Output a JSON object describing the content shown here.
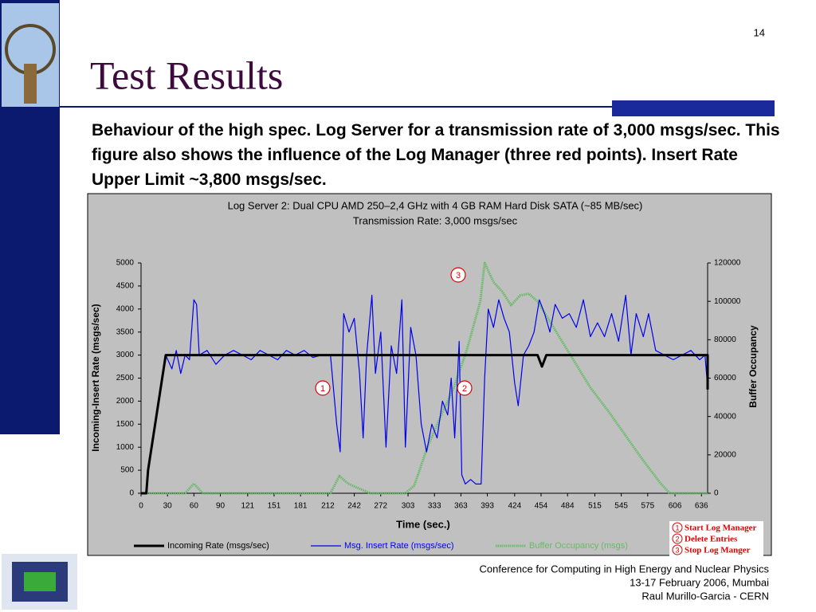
{
  "slide": {
    "page_number": "14",
    "title": "Test Results",
    "body": "Behaviour of the high spec. Log Server for a transmission rate of 3,000 msgs/sec. This figure also shows the influence of the Log Manager (three red points). Insert Rate Upper Limit ~3,800 msgs/sec.",
    "footer": [
      "Conference for Computing in High Energy and Nuclear Physics",
      "13-17 February 2006, Mumbai",
      "Raul Murillo-Garcia - CERN"
    ]
  },
  "chart_data": {
    "type": "line",
    "title": "Log Server 2: Dual CPU AMD 250–2,4 GHz with 4 GB RAM Hard Disk SATA (~85 MB/sec)",
    "subtitle": "Transmission Rate: 3,000 msgs/sec",
    "x_label": "Time (sec.)",
    "y_label": "Incoming-Insert Rate (msgs/sec)",
    "y2_label": "Buffer Occupancy",
    "xlim": [
      0,
      643
    ],
    "xticks": [
      0,
      30,
      60,
      90,
      121,
      151,
      181,
      212,
      242,
      272,
      303,
      333,
      363,
      393,
      424,
      454,
      484,
      515,
      545,
      575,
      606,
      636
    ],
    "ylim": [
      0,
      5000
    ],
    "yticks": [
      0,
      500,
      1000,
      1500,
      2000,
      2500,
      3000,
      3500,
      4000,
      4500,
      5000
    ],
    "y2lim": [
      0,
      120000
    ],
    "y2ticks": [
      0,
      20000,
      40000,
      60000,
      80000,
      100000,
      120000
    ],
    "series": [
      {
        "name": "Incoming Rate (msgs/sec)",
        "color": "#000000",
        "x": [
          0,
          6,
          8,
          28,
          450,
          455,
          460,
          643,
          643
        ],
        "values": [
          0,
          0,
          500,
          3000,
          3000,
          2750,
          3000,
          3000,
          2250
        ]
      },
      {
        "name": "Msg. Insert Rate (msgs/sec)",
        "color": "#0000ee",
        "x": [
          28,
          35,
          40,
          45,
          50,
          55,
          60,
          63,
          66,
          75,
          85,
          95,
          105,
          115,
          125,
          135,
          145,
          155,
          165,
          175,
          185,
          195,
          205,
          215,
          222,
          226,
          230,
          236,
          242,
          248,
          252,
          256,
          262,
          266,
          272,
          278,
          284,
          290,
          296,
          300,
          306,
          312,
          318,
          324,
          330,
          336,
          342,
          348,
          352,
          356,
          361,
          364,
          368,
          374,
          380,
          386,
          390,
          394,
          400,
          406,
          412,
          418,
          424,
          428,
          434,
          440,
          446,
          452,
          458,
          464,
          470,
          478,
          486,
          494,
          502,
          510,
          518,
          526,
          534,
          542,
          550,
          556,
          562,
          570,
          576,
          584,
          594,
          604,
          614,
          624,
          634,
          640,
          643
        ],
        "values": [
          3000,
          2700,
          3100,
          2600,
          3000,
          2900,
          4200,
          4100,
          3000,
          3100,
          2800,
          3000,
          3100,
          3000,
          2900,
          3100,
          3000,
          2900,
          3100,
          3000,
          3100,
          2950,
          3000,
          3000,
          1500,
          900,
          3900,
          3500,
          3800,
          2600,
          1200,
          3000,
          4300,
          2600,
          3500,
          1000,
          3200,
          2600,
          4200,
          1000,
          3600,
          3000,
          1500,
          900,
          1500,
          1200,
          2000,
          1700,
          2500,
          1200,
          3300,
          400,
          200,
          300,
          200,
          200,
          2500,
          4000,
          3600,
          4200,
          3800,
          3500,
          2400,
          1900,
          3000,
          3200,
          3500,
          4200,
          3900,
          3500,
          4100,
          3800,
          3900,
          3600,
          4200,
          3400,
          3700,
          3400,
          3900,
          3300,
          4300,
          3000,
          3900,
          3400,
          3900,
          3100,
          3000,
          2900,
          3000,
          3100,
          2900,
          3000,
          2300
        ]
      },
      {
        "name": "Buffer Occupancy (msgs)",
        "color": "#66bb66",
        "axis": "y2",
        "x": [
          0,
          50,
          60,
          70,
          215,
          225,
          235,
          245,
          260,
          300,
          310,
          325,
          340,
          355,
          370,
          385,
          390,
          400,
          410,
          420,
          430,
          440,
          450,
          470,
          490,
          510,
          530,
          550,
          570,
          590,
          600,
          643
        ],
        "values": [
          0,
          0,
          5000,
          0,
          0,
          9000,
          5000,
          3000,
          0,
          0,
          4000,
          24000,
          40000,
          55000,
          75000,
          100000,
          120000,
          110000,
          105000,
          98000,
          103000,
          104000,
          100000,
          85000,
          70000,
          55000,
          43000,
          30000,
          17000,
          5000,
          0,
          0
        ]
      }
    ],
    "annotations": [
      "1",
      "2",
      "3"
    ],
    "notes": [
      {
        "number": "1",
        "label": "Start Log Manager"
      },
      {
        "number": "2",
        "label": "Delete Entries"
      },
      {
        "number": "3",
        "label": "Stop Log Manger"
      }
    ]
  }
}
